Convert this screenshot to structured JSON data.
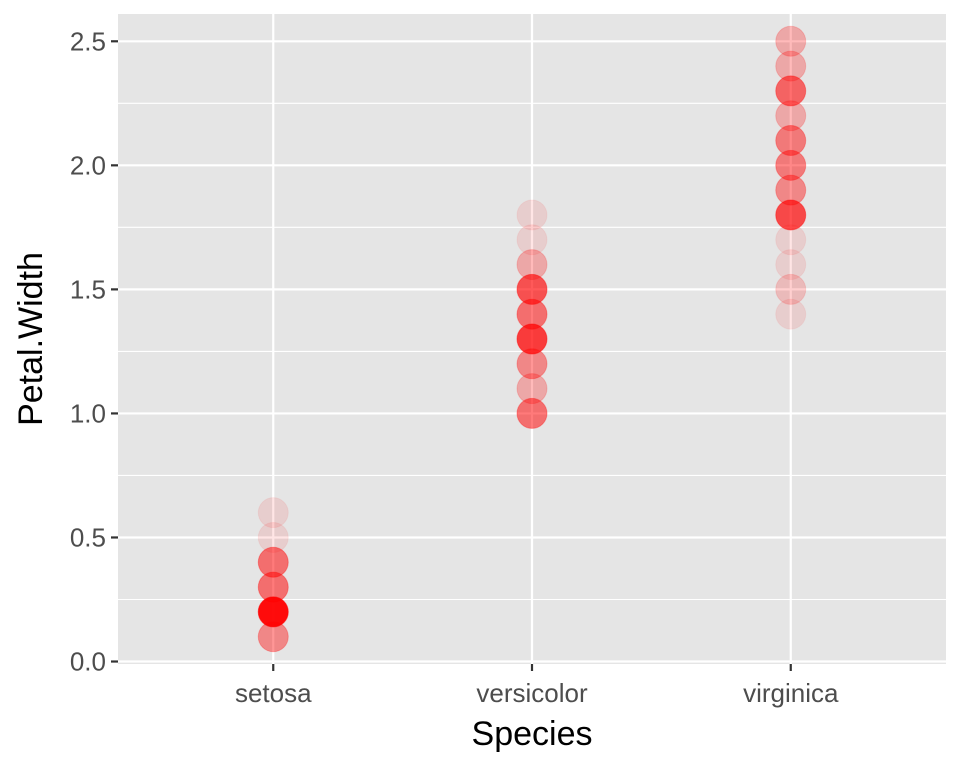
{
  "chart_data": {
    "type": "scatter",
    "title": "",
    "xlabel": "Species",
    "ylabel": "Petal.Width",
    "categories": [
      "setosa",
      "versicolor",
      "virginica"
    ],
    "ylim": [
      -0.01,
      2.61
    ],
    "yticks": [
      0.0,
      0.5,
      1.0,
      1.5,
      2.0,
      2.5
    ],
    "ytick_labels": [
      "0.0",
      "0.5",
      "1.0",
      "1.5",
      "2.0",
      "2.5"
    ],
    "grid": true,
    "legend": "none",
    "point_color": "#ff0000",
    "panel_background": "#e5e5e5",
    "grid_color": "#ffffff",
    "series": [
      {
        "name": "setosa",
        "points": [
          {
            "y": 0.1,
            "count": 5
          },
          {
            "y": 0.2,
            "count": 29
          },
          {
            "y": 0.3,
            "count": 7
          },
          {
            "y": 0.4,
            "count": 7
          },
          {
            "y": 0.5,
            "count": 1
          },
          {
            "y": 0.6,
            "count": 1
          }
        ]
      },
      {
        "name": "versicolor",
        "points": [
          {
            "y": 1.0,
            "count": 7
          },
          {
            "y": 1.1,
            "count": 3
          },
          {
            "y": 1.2,
            "count": 5
          },
          {
            "y": 1.3,
            "count": 13
          },
          {
            "y": 1.4,
            "count": 7
          },
          {
            "y": 1.5,
            "count": 10
          },
          {
            "y": 1.6,
            "count": 3
          },
          {
            "y": 1.7,
            "count": 1
          },
          {
            "y": 1.8,
            "count": 1
          }
        ]
      },
      {
        "name": "virginica",
        "points": [
          {
            "y": 1.4,
            "count": 1
          },
          {
            "y": 1.5,
            "count": 2
          },
          {
            "y": 1.6,
            "count": 1
          },
          {
            "y": 1.7,
            "count": 1
          },
          {
            "y": 1.8,
            "count": 11
          },
          {
            "y": 1.9,
            "count": 5
          },
          {
            "y": 2.0,
            "count": 6
          },
          {
            "y": 2.1,
            "count": 6
          },
          {
            "y": 2.2,
            "count": 3
          },
          {
            "y": 2.3,
            "count": 8
          },
          {
            "y": 2.4,
            "count": 3
          },
          {
            "y": 2.5,
            "count": 3
          }
        ]
      }
    ]
  }
}
